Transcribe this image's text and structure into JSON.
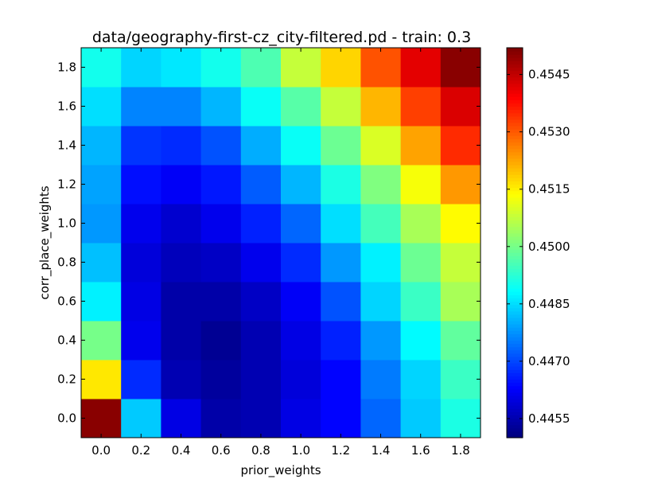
{
  "chart_data": {
    "type": "heatmap",
    "title": "data/geography-first-cz_city-filtered.pd - train: 0.3",
    "xlabel": "prior_weights",
    "ylabel": "corr_place_weights",
    "x": [
      0.0,
      0.2,
      0.4,
      0.6,
      0.8,
      1.0,
      1.2,
      1.4,
      1.6,
      1.8
    ],
    "y": [
      0.0,
      0.2,
      0.4,
      0.6,
      0.8,
      1.0,
      1.2,
      1.4,
      1.6,
      1.8
    ],
    "x_tick_labels": [
      "0.0",
      "0.2",
      "0.4",
      "0.6",
      "0.8",
      "1.0",
      "1.2",
      "1.4",
      "1.6",
      "1.8"
    ],
    "y_tick_labels": [
      "0.0",
      "0.2",
      "0.4",
      "0.6",
      "0.8",
      "1.0",
      "1.2",
      "1.4",
      "1.6",
      "1.8"
    ],
    "values_by_row_from_y0": [
      [
        0.4551,
        0.4483,
        0.446,
        0.4454,
        0.4455,
        0.446,
        0.4463,
        0.4473,
        0.4483,
        0.4491
      ],
      [
        0.4516,
        0.4467,
        0.4455,
        0.4453,
        0.4455,
        0.4459,
        0.4463,
        0.4475,
        0.4484,
        0.4494
      ],
      [
        0.45,
        0.4461,
        0.4454,
        0.4452,
        0.4455,
        0.446,
        0.4466,
        0.4478,
        0.4488,
        0.4498
      ],
      [
        0.4487,
        0.446,
        0.4454,
        0.4454,
        0.4457,
        0.4462,
        0.4471,
        0.4484,
        0.4494,
        0.4505
      ],
      [
        0.4482,
        0.4459,
        0.4456,
        0.4457,
        0.4461,
        0.4467,
        0.4478,
        0.4487,
        0.4499,
        0.4508
      ],
      [
        0.4478,
        0.4461,
        0.4458,
        0.4461,
        0.4466,
        0.4473,
        0.4485,
        0.4495,
        0.4505,
        0.4514
      ],
      [
        0.4479,
        0.4464,
        0.4462,
        0.4465,
        0.4472,
        0.4481,
        0.4491,
        0.4501,
        0.4513,
        0.4524
      ],
      [
        0.4481,
        0.4468,
        0.4467,
        0.4471,
        0.448,
        0.4489,
        0.4499,
        0.451,
        0.4523,
        0.4535
      ],
      [
        0.4485,
        0.4476,
        0.4476,
        0.4481,
        0.4489,
        0.4497,
        0.4508,
        0.4521,
        0.4533,
        0.4543
      ],
      [
        0.449,
        0.4484,
        0.4486,
        0.449,
        0.4496,
        0.4508,
        0.4518,
        0.4531,
        0.4542,
        0.4551
      ]
    ],
    "colorbar": {
      "ticks": [
        0.4455,
        0.447,
        0.4485,
        0.45,
        0.4515,
        0.453,
        0.4545
      ],
      "tick_labels": [
        "0.4455",
        "0.4470",
        "0.4485",
        "0.4500",
        "0.4515",
        "0.4530",
        "0.4545"
      ],
      "range": [
        0.445,
        0.4552
      ],
      "colormap": "jet"
    },
    "grid": false
  }
}
